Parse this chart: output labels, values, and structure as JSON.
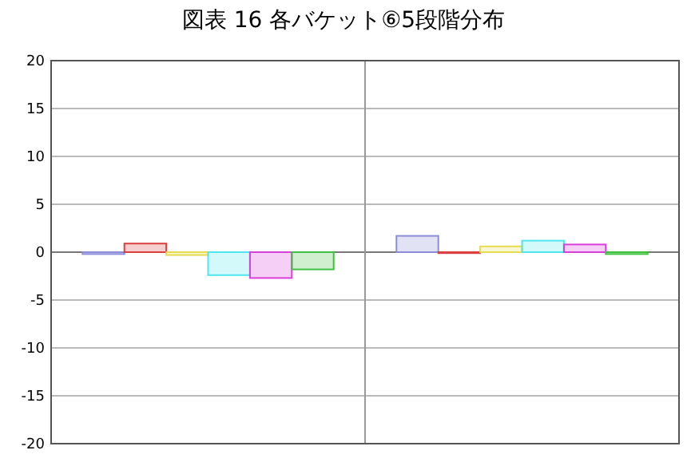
{
  "chart_data": {
    "type": "bar",
    "title": "図表 16 各バケット⑥5段階分布",
    "categories": [
      null,
      null
    ],
    "ylim": [
      -20,
      20
    ],
    "yticks": [
      -20,
      -15,
      -10,
      -5,
      0,
      5,
      10,
      15,
      20
    ],
    "grid": "y",
    "series": [
      {
        "color": "#8c8cd9",
        "values": [
          -0.2,
          1.7
        ]
      },
      {
        "color": "#d94040",
        "values": [
          0.9,
          -0.1
        ]
      },
      {
        "color": "#e6dc50",
        "values": [
          -0.3,
          0.6
        ]
      },
      {
        "color": "#50e6f0",
        "values": [
          -2.4,
          1.2
        ]
      },
      {
        "color": "#d940d9",
        "values": [
          -2.7,
          0.8
        ]
      },
      {
        "color": "#40c040",
        "values": [
          -1.8,
          -0.2
        ]
      }
    ]
  }
}
